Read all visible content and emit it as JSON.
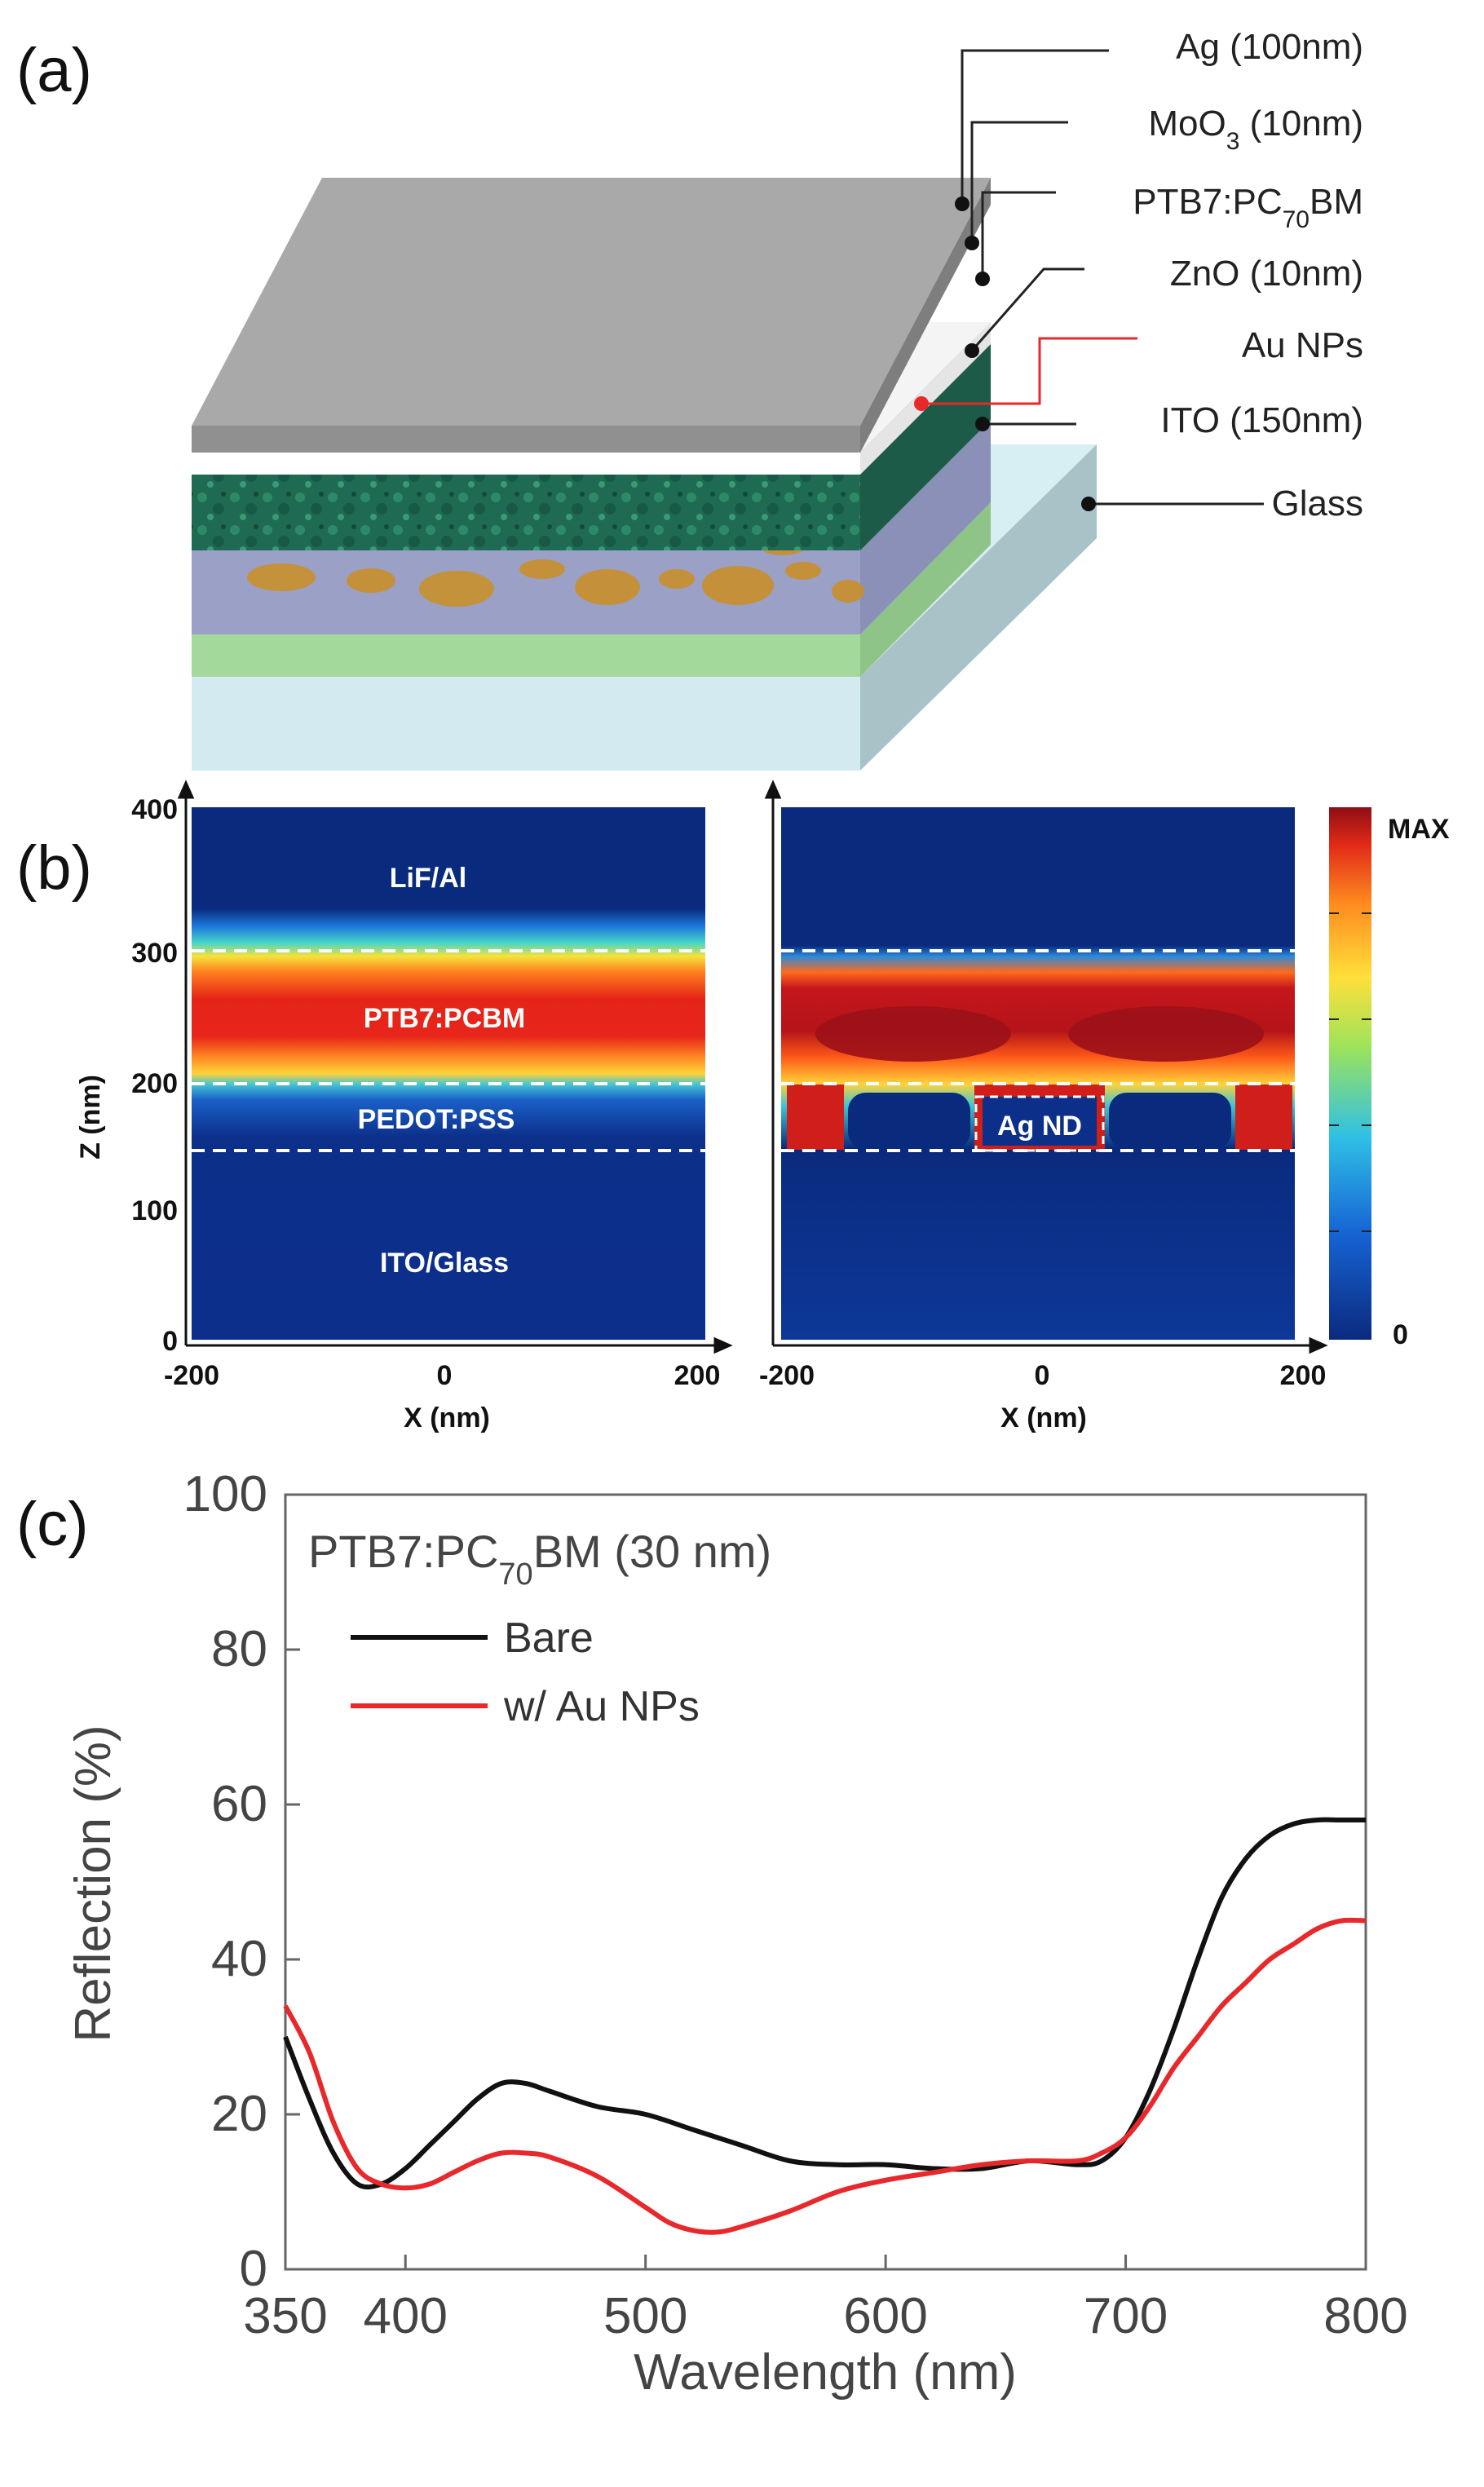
{
  "panel_a": {
    "label": "(a)",
    "layers": [
      {
        "text": "Ag (100nm)",
        "color": "#222222"
      },
      {
        "text": "MoO",
        "sub": "3",
        "tail": " (10nm)",
        "color": "#222222"
      },
      {
        "text": "PTB7:PC",
        "sub": "70",
        "tail": "BM",
        "color": "#222222"
      },
      {
        "text": "ZnO (10nm)",
        "color": "#222222"
      },
      {
        "text": "Au NPs",
        "color": "#e8282b"
      },
      {
        "text": "ITO (150nm)",
        "color": "#222222"
      },
      {
        "text": "Glass",
        "color": "#222222"
      }
    ]
  },
  "panel_b": {
    "label": "(b)",
    "left_map": {
      "layer_labels": [
        "LiF/Al",
        "PTB7:PCBM",
        "PEDOT:PSS",
        "ITO/Glass"
      ]
    },
    "right_map": {
      "inset_label": "Ag ND"
    },
    "y_axis": {
      "label": "Z (nm)",
      "ticks": [
        "400",
        "300",
        "200",
        "100",
        "0"
      ]
    },
    "x_axis": {
      "label": "X (nm)",
      "ticks": [
        "-200",
        "0",
        "200"
      ]
    },
    "colorbar": {
      "max_label": "MAX",
      "min_label": "0"
    }
  },
  "panel_c": {
    "label": "(c)",
    "chart_data": {
      "type": "line",
      "title": "PTB7:PC70BM (30 nm)",
      "title_parts": {
        "main": "PTB7:PC",
        "sub": "70",
        "tail": "BM (30 nm)"
      },
      "xlabel": "Wavelength (nm)",
      "ylabel": "Reflection (%)",
      "xlim": [
        350,
        800
      ],
      "ylim": [
        0,
        100
      ],
      "xticks": [
        350,
        400,
        500,
        600,
        700,
        800
      ],
      "yticks": [
        0,
        20,
        40,
        60,
        80,
        100
      ],
      "series": [
        {
          "name": "Bare",
          "color": "#111111",
          "x": [
            350,
            360,
            370,
            380,
            390,
            400,
            410,
            420,
            430,
            440,
            450,
            460,
            480,
            500,
            520,
            540,
            560,
            580,
            600,
            620,
            640,
            660,
            680,
            690,
            700,
            710,
            720,
            730,
            740,
            750,
            760,
            770,
            780,
            790,
            800
          ],
          "y": [
            30,
            22,
            15,
            11,
            11,
            13,
            16,
            19,
            22,
            24,
            24,
            23,
            21,
            20,
            18,
            16,
            14,
            13.5,
            13.5,
            13,
            13,
            14,
            13.5,
            14,
            17,
            23,
            31,
            40,
            48,
            53,
            56,
            57.5,
            58,
            58,
            58
          ]
        },
        {
          "name": "w/ Au NPs",
          "color": "#e8282b",
          "x": [
            350,
            360,
            370,
            380,
            390,
            400,
            410,
            420,
            430,
            440,
            450,
            460,
            480,
            500,
            510,
            520,
            530,
            540,
            560,
            580,
            600,
            620,
            640,
            660,
            680,
            690,
            700,
            710,
            720,
            730,
            740,
            750,
            760,
            770,
            780,
            790,
            800
          ],
          "y": [
            34,
            28,
            19,
            13,
            11,
            10.5,
            11,
            12.5,
            14,
            15,
            15,
            14.5,
            12,
            8,
            6,
            5,
            4.8,
            5.5,
            7.5,
            10,
            11.5,
            12.5,
            13.5,
            14,
            14,
            15,
            17,
            21,
            26,
            30,
            34,
            37,
            40,
            42,
            44,
            45,
            45
          ]
        }
      ]
    }
  }
}
